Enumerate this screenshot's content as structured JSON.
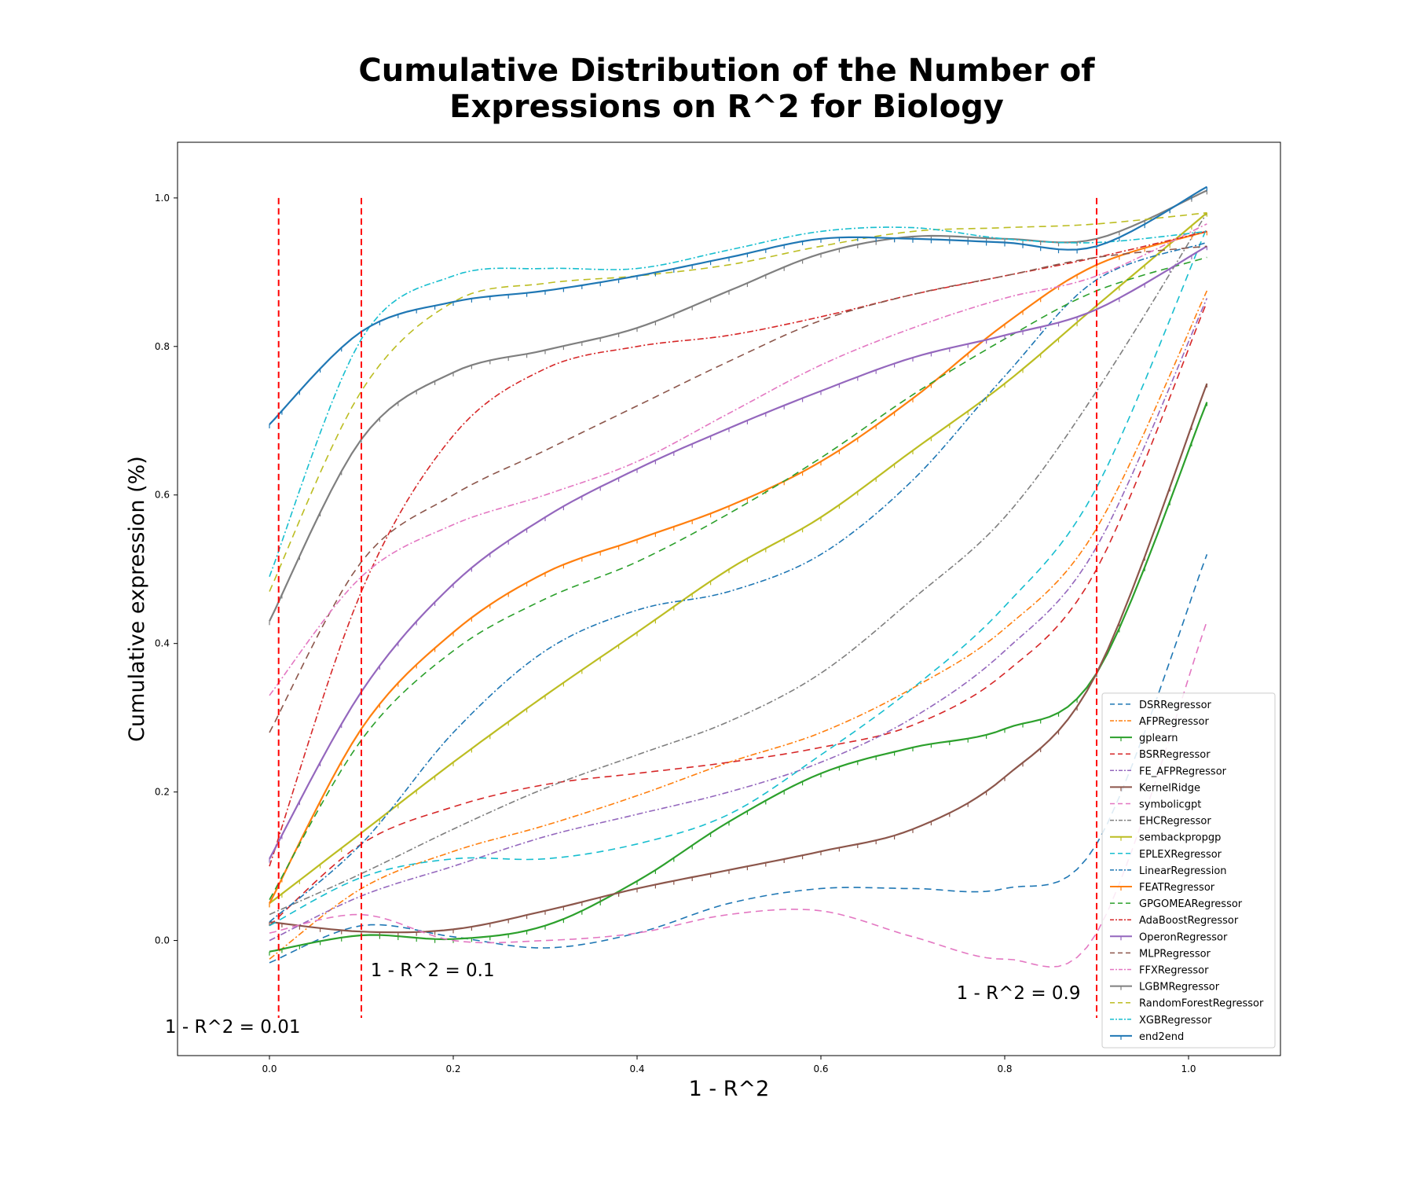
{
  "chart_data": {
    "type": "line",
    "title_lines": [
      "Cumulative Distribution of the Number of",
      "Expressions on R^2 for Biology"
    ],
    "xlabel": "1 - R^2",
    "ylabel": "Cumulative expression (%)",
    "xlim": [
      -0.1,
      1.1
    ],
    "ylim": [
      -0.155,
      1.075
    ],
    "xticks": [
      "0.0",
      "0.2",
      "0.4",
      "0.6",
      "0.8",
      "1.0"
    ],
    "yticks": [
      "0.0",
      "0.2",
      "0.4",
      "0.6",
      "0.8",
      "1.0"
    ],
    "grid": false,
    "legend_position": "lower-right",
    "thresholds": [
      {
        "x": 0.01,
        "label": "1 - R^2 = 0.01",
        "color": "#ff0000"
      },
      {
        "x": 0.1,
        "label": "1 - R^2 = 0.1",
        "color": "#ff0000"
      },
      {
        "x": 0.9,
        "label": "1 - R^2 = 0.9",
        "color": "#ff0000"
      }
    ],
    "x": [
      0.0,
      0.1,
      0.2,
      0.3,
      0.4,
      0.5,
      0.6,
      0.7,
      0.8,
      0.9,
      1.02
    ],
    "series": [
      {
        "name": "DSRRegressor",
        "color": "#1f77b4",
        "style": "dashed",
        "marker": false,
        "values": [
          -0.03,
          0.02,
          0.005,
          -0.01,
          0.01,
          0.05,
          0.07,
          0.07,
          0.07,
          0.13,
          0.52
        ]
      },
      {
        "name": "AFPRegressor",
        "color": "#ff7f0e",
        "style": "dashdot",
        "marker": false,
        "values": [
          -0.025,
          0.07,
          0.12,
          0.155,
          0.195,
          0.24,
          0.28,
          0.34,
          0.42,
          0.555,
          0.875
        ]
      },
      {
        "name": "gplearn",
        "color": "#2ca02c",
        "style": "solid",
        "marker": true,
        "values": [
          -0.015,
          0.007,
          0.002,
          0.02,
          0.08,
          0.16,
          0.225,
          0.26,
          0.285,
          0.36,
          0.725
        ]
      },
      {
        "name": "BSRRegressor",
        "color": "#d62728",
        "style": "dashed",
        "marker": false,
        "values": [
          0.02,
          0.13,
          0.18,
          0.21,
          0.225,
          0.24,
          0.26,
          0.29,
          0.36,
          0.5,
          0.86
        ]
      },
      {
        "name": "FE_AFPRegressor",
        "color": "#9467bd",
        "style": "dashdot",
        "marker": false,
        "values": [
          0.0,
          0.06,
          0.1,
          0.14,
          0.17,
          0.2,
          0.24,
          0.3,
          0.39,
          0.53,
          0.865
        ]
      },
      {
        "name": "KernelRidge",
        "color": "#8c564b",
        "style": "solid",
        "marker": true,
        "values": [
          0.025,
          0.012,
          0.015,
          0.04,
          0.07,
          0.095,
          0.12,
          0.15,
          0.22,
          0.36,
          0.75
        ]
      },
      {
        "name": "symbolicgpt",
        "color": "#e377c2",
        "style": "dashed",
        "marker": false,
        "values": [
          0.01,
          0.035,
          0.0,
          0.0,
          0.01,
          0.035,
          0.04,
          0.005,
          -0.025,
          0.01,
          0.43
        ]
      },
      {
        "name": "EHCRegressor",
        "color": "#7f7f7f",
        "style": "dashdot",
        "marker": false,
        "values": [
          0.035,
          0.09,
          0.15,
          0.205,
          0.25,
          0.295,
          0.36,
          0.46,
          0.57,
          0.74,
          0.98
        ]
      },
      {
        "name": "sembackpropgp",
        "color": "#bcbd22",
        "style": "solid",
        "marker": true,
        "values": [
          0.05,
          0.145,
          0.24,
          0.33,
          0.415,
          0.5,
          0.57,
          0.66,
          0.75,
          0.855,
          0.98
        ]
      },
      {
        "name": "EPLEXRegressor",
        "color": "#17becf",
        "style": "dashed",
        "marker": false,
        "values": [
          0.02,
          0.085,
          0.11,
          0.11,
          0.13,
          0.17,
          0.25,
          0.34,
          0.45,
          0.61,
          0.96
        ]
      },
      {
        "name": "LinearRegression",
        "color": "#1f77b4",
        "style": "dashdot",
        "marker": false,
        "values": [
          0.025,
          0.13,
          0.28,
          0.39,
          0.445,
          0.47,
          0.52,
          0.62,
          0.76,
          0.89,
          0.94
        ]
      },
      {
        "name": "FEATRegressor",
        "color": "#ff7f0e",
        "style": "solid",
        "marker": true,
        "values": [
          0.05,
          0.285,
          0.415,
          0.495,
          0.54,
          0.585,
          0.645,
          0.73,
          0.83,
          0.91,
          0.955
        ]
      },
      {
        "name": "GPGOMEARegressor",
        "color": "#2ca02c",
        "style": "dashed",
        "marker": false,
        "values": [
          0.055,
          0.27,
          0.39,
          0.46,
          0.51,
          0.575,
          0.65,
          0.735,
          0.81,
          0.875,
          0.92
        ]
      },
      {
        "name": "AdaBoostRegressor",
        "color": "#d62728",
        "style": "dashdot",
        "marker": false,
        "values": [
          0.1,
          0.47,
          0.68,
          0.77,
          0.8,
          0.815,
          0.84,
          0.87,
          0.895,
          0.92,
          0.955
        ]
      },
      {
        "name": "OperonRegressor",
        "color": "#9467bd",
        "style": "solid",
        "marker": true,
        "values": [
          0.11,
          0.335,
          0.48,
          0.57,
          0.635,
          0.69,
          0.74,
          0.785,
          0.815,
          0.85,
          0.935
        ]
      },
      {
        "name": "MLPRegressor",
        "color": "#8c564b",
        "style": "dashed",
        "marker": false,
        "values": [
          0.28,
          0.51,
          0.6,
          0.66,
          0.72,
          0.78,
          0.835,
          0.87,
          0.895,
          0.92,
          0.935
        ]
      },
      {
        "name": "FFXRegressor",
        "color": "#e377c2",
        "style": "dashdot",
        "marker": false,
        "values": [
          0.33,
          0.49,
          0.56,
          0.6,
          0.645,
          0.71,
          0.775,
          0.825,
          0.865,
          0.895,
          0.965
        ]
      },
      {
        "name": "LGBMRegressor",
        "color": "#7f7f7f",
        "style": "solid",
        "marker": true,
        "values": [
          0.43,
          0.675,
          0.765,
          0.795,
          0.825,
          0.875,
          0.925,
          0.948,
          0.945,
          0.945,
          1.01
        ]
      },
      {
        "name": "RandomForestRegressor",
        "color": "#bcbd22",
        "style": "dashed",
        "marker": false,
        "values": [
          0.47,
          0.74,
          0.86,
          0.885,
          0.895,
          0.91,
          0.935,
          0.955,
          0.96,
          0.965,
          0.98
        ]
      },
      {
        "name": "XGBRegressor",
        "color": "#17becf",
        "style": "dashdot",
        "marker": false,
        "values": [
          0.49,
          0.81,
          0.895,
          0.905,
          0.905,
          0.93,
          0.955,
          0.96,
          0.945,
          0.94,
          0.955
        ]
      },
      {
        "name": "end2end",
        "color": "#1f77b4",
        "style": "solid",
        "marker": true,
        "values": [
          0.695,
          0.82,
          0.86,
          0.875,
          0.895,
          0.92,
          0.945,
          0.945,
          0.94,
          0.935,
          1.015
        ]
      }
    ]
  }
}
